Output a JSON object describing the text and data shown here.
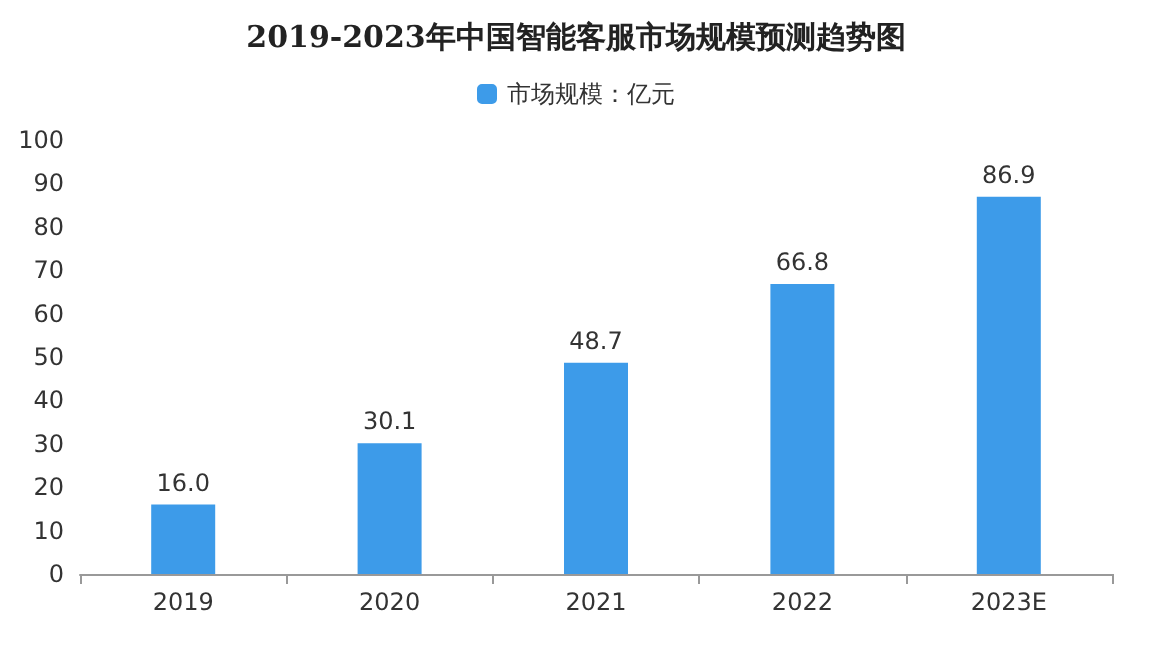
{
  "chart_data": {
    "type": "bar",
    "title": "2019-2023年中国智能客服市场规模预测趋势图",
    "categories": [
      "2019",
      "2020",
      "2021",
      "2022",
      "2023E"
    ],
    "series": [
      {
        "name": "市场规模：亿元",
        "color": "#3d9be9",
        "values": [
          16.0,
          30.1,
          48.7,
          66.8,
          86.9
        ],
        "value_labels": [
          "16.0",
          "30.1",
          "48.7",
          "66.8",
          "86.9"
        ]
      }
    ],
    "ylim": [
      0,
      100
    ],
    "yticks": [
      0,
      10,
      20,
      30,
      40,
      50,
      60,
      70,
      80,
      90,
      100
    ],
    "grid": false,
    "legend": "top"
  }
}
